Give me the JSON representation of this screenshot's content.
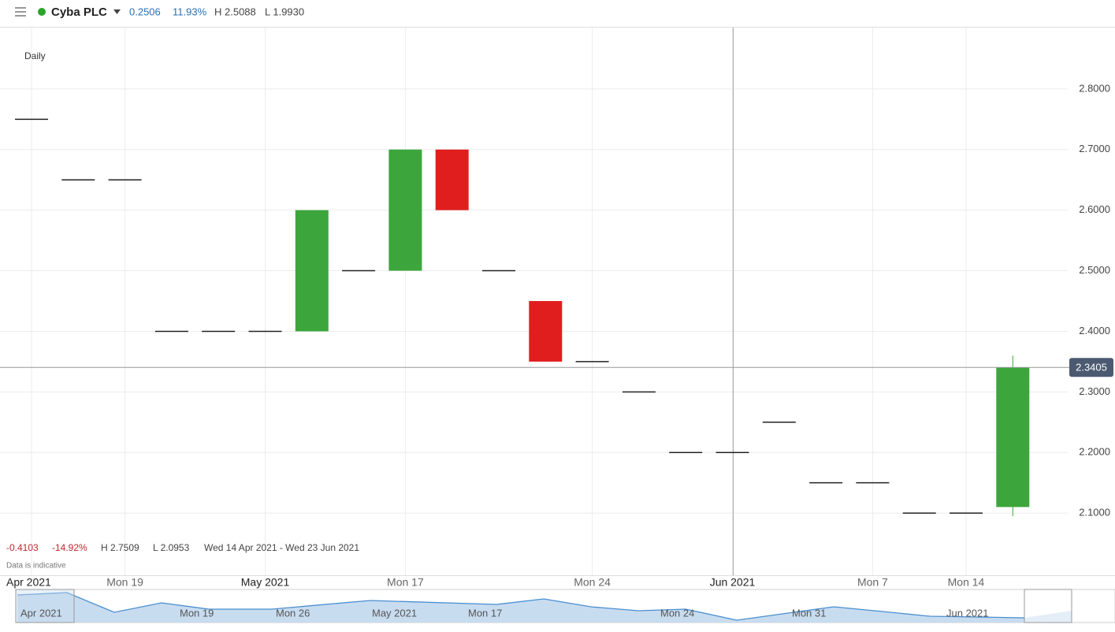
{
  "header": {
    "instrument": "Cyba PLC",
    "change": "0.2506",
    "change_pct": "11.93%",
    "high": "H 2.5088",
    "low": "L 1.9930"
  },
  "stats": {
    "change": "-0.4103",
    "change_pct": "-14.92%",
    "high": "H 2.7509",
    "low": "L 2.0953",
    "range": "Wed 14 Apr 2021 - Wed 23 Jun 2021",
    "note": "Data is indicative"
  },
  "navigator_labels": [
    "Apr 2021",
    "Mon 19",
    "Mon 26",
    "May 2021",
    "Mon 17",
    "Mon 24",
    "Mon 31",
    "Jun 2021"
  ],
  "chart_data": {
    "type": "candlestick",
    "interval": "Daily",
    "categories": [
      "Apr 2021",
      null,
      "Mon 19",
      null,
      null,
      "May 2021",
      null,
      null,
      "Mon 17",
      null,
      null,
      null,
      "Mon 24",
      null,
      null,
      "Jun 2021",
      null,
      null,
      "Mon 7",
      null,
      "Mon 14",
      null
    ],
    "series": [
      {
        "name": "open",
        "values": [
          2.75,
          2.65,
          2.65,
          2.4,
          2.4,
          2.4,
          2.4,
          2.5,
          2.5,
          2.7,
          2.5,
          2.45,
          2.35,
          2.3,
          2.2,
          2.2,
          2.25,
          2.15,
          2.15,
          2.1,
          2.1,
          2.11
        ]
      },
      {
        "name": "close",
        "values": [
          2.75,
          2.65,
          2.65,
          2.4,
          2.4,
          2.4,
          2.6,
          2.5,
          2.7,
          2.6,
          2.5,
          2.35,
          2.35,
          2.3,
          2.2,
          2.2,
          2.25,
          2.15,
          2.15,
          2.1,
          2.1,
          2.3405
        ]
      },
      {
        "name": "high",
        "values": [
          2.75,
          2.65,
          2.65,
          2.4,
          2.4,
          2.4,
          2.6,
          2.5,
          2.7,
          2.7,
          2.5,
          2.45,
          2.35,
          2.3,
          2.2,
          2.2,
          2.25,
          2.15,
          2.15,
          2.1,
          2.1,
          2.36
        ]
      },
      {
        "name": "low",
        "values": [
          2.75,
          2.65,
          2.65,
          2.4,
          2.4,
          2.4,
          2.4,
          2.5,
          2.5,
          2.6,
          2.5,
          2.35,
          2.35,
          2.3,
          2.2,
          2.2,
          2.25,
          2.15,
          2.15,
          2.1,
          2.1,
          2.095
        ]
      }
    ],
    "up_color": "#3ca63c",
    "down_color": "#e01e1e",
    "flat_color": "#222222",
    "ylim": [
      2.0,
      2.9
    ],
    "yticks": [
      {
        "value": 2.1,
        "label": "2.1000"
      },
      {
        "value": 2.2,
        "label": "2.2000"
      },
      {
        "value": 2.3,
        "label": "2.3000"
      },
      {
        "value": 2.4,
        "label": "2.4000"
      },
      {
        "value": 2.5,
        "label": "2.5000"
      },
      {
        "value": 2.6,
        "label": "2.6000"
      },
      {
        "value": 2.7,
        "label": "2.7000"
      },
      {
        "value": 2.8,
        "label": "2.8000"
      }
    ],
    "grid": true
  }
}
